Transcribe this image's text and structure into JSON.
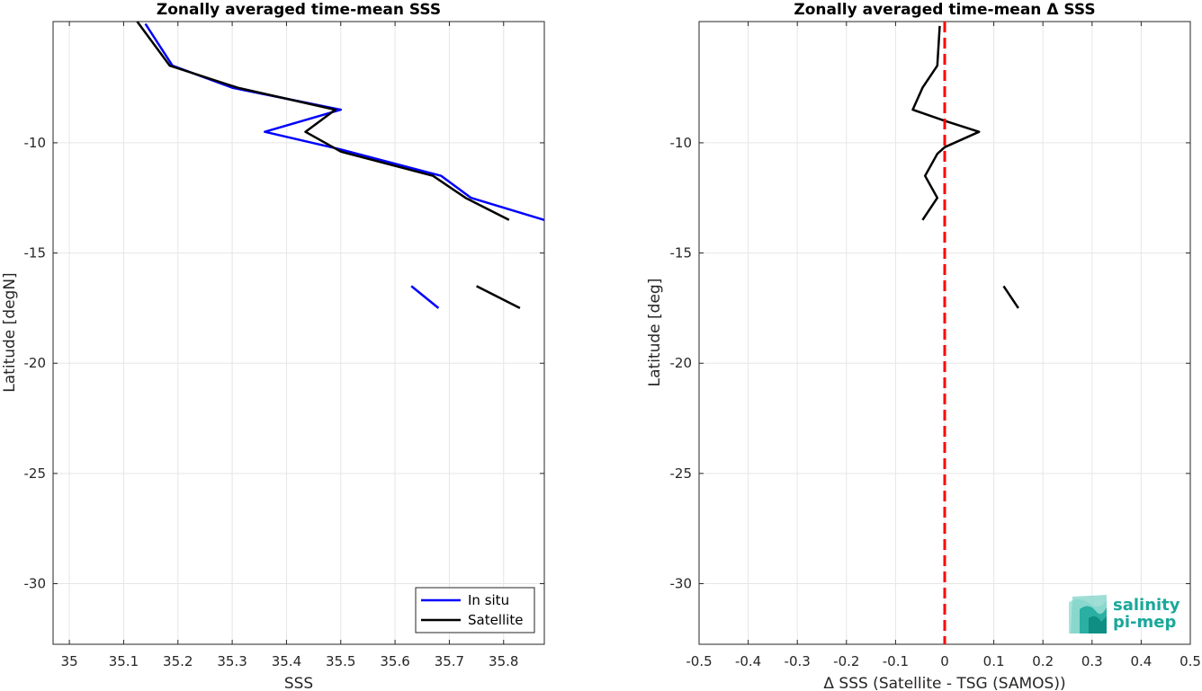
{
  "chart_data": [
    {
      "type": "line",
      "title": "Zonally averaged time-mean SSS",
      "xlabel": "SSS",
      "ylabel": "Latitude [degN]",
      "xlim": [
        34.97,
        35.875
      ],
      "ylim": [
        -32.75,
        -4.5
      ],
      "xticks": [
        35,
        35.1,
        35.2,
        35.3,
        35.4,
        35.5,
        35.6,
        35.7,
        35.8
      ],
      "xtick_labels": [
        "35",
        "35.1",
        "35.2",
        "35.3",
        "35.4",
        "35.5",
        "35.6",
        "35.7",
        "35.8"
      ],
      "yticks": [
        -10,
        -15,
        -20,
        -25,
        -30
      ],
      "ytick_labels": [
        "-10",
        "-15",
        "-20",
        "-25",
        "-30"
      ],
      "grid": true,
      "legend": "bottom-right",
      "series": [
        {
          "name": "In situ",
          "color": "#0000ff",
          "segments": [
            [
              [
                35.14,
                -4.6
              ],
              [
                35.19,
                -6.5
              ],
              [
                35.3,
                -7.5
              ],
              [
                35.5,
                -8.5
              ],
              [
                35.36,
                -9.5
              ],
              [
                35.5,
                -10.3
              ],
              [
                35.685,
                -11.5
              ],
              [
                35.74,
                -12.5
              ],
              [
                35.875,
                -13.5
              ]
            ],
            [
              [
                35.63,
                -16.5
              ],
              [
                35.68,
                -17.5
              ]
            ]
          ]
        },
        {
          "name": "Satellite",
          "color": "#000000",
          "segments": [
            [
              [
                35.125,
                -4.5
              ],
              [
                35.185,
                -6.5
              ],
              [
                35.31,
                -7.5
              ],
              [
                35.49,
                -8.5
              ],
              [
                35.435,
                -9.5
              ],
              [
                35.5,
                -10.4
              ],
              [
                35.67,
                -11.5
              ],
              [
                35.73,
                -12.5
              ],
              [
                35.81,
                -13.5
              ]
            ],
            [
              [
                35.75,
                -16.5
              ],
              [
                35.83,
                -17.5
              ]
            ]
          ]
        }
      ]
    },
    {
      "type": "line",
      "title": "Zonally averaged time-mean Δ SSS",
      "xlabel": "Δ SSS (Satellite - TSG (SAMOS))",
      "ylabel": "Latitude [deg]",
      "xlim": [
        -0.5,
        0.5
      ],
      "ylim": [
        -32.75,
        -4.5
      ],
      "xticks": [
        -0.5,
        -0.4,
        -0.3,
        -0.2,
        -0.1,
        0,
        0.1,
        0.2,
        0.3,
        0.4,
        0.5
      ],
      "xtick_labels": [
        "-0.5",
        "-0.4",
        "-0.3",
        "-0.2",
        "-0.1",
        "0",
        "0.1",
        "0.2",
        "0.3",
        "0.4",
        "0.5"
      ],
      "yticks": [
        -10,
        -15,
        -20,
        -25,
        -30
      ],
      "ytick_labels": [
        "-10",
        "-15",
        "-20",
        "-25",
        "-30"
      ],
      "grid": true,
      "reference_line": {
        "x": 0,
        "color": "#ff0000",
        "style": "dashed"
      },
      "series": [
        {
          "color": "#000000",
          "segments": [
            [
              [
                -0.01,
                -4.7
              ],
              [
                -0.015,
                -6.5
              ],
              [
                -0.045,
                -7.5
              ],
              [
                -0.065,
                -8.5
              ],
              [
                0.0,
                -9.0
              ],
              [
                0.07,
                -9.5
              ],
              [
                0.0,
                -10.2
              ],
              [
                -0.015,
                -10.5
              ],
              [
                -0.04,
                -11.5
              ],
              [
                -0.015,
                -12.5
              ],
              [
                -0.045,
                -13.5
              ]
            ],
            [
              [
                0.12,
                -16.5
              ],
              [
                0.15,
                -17.5
              ]
            ]
          ]
        }
      ]
    }
  ],
  "logo": {
    "line1": "salinity",
    "line2": "pi-mep",
    "color": "#1aa89a"
  }
}
